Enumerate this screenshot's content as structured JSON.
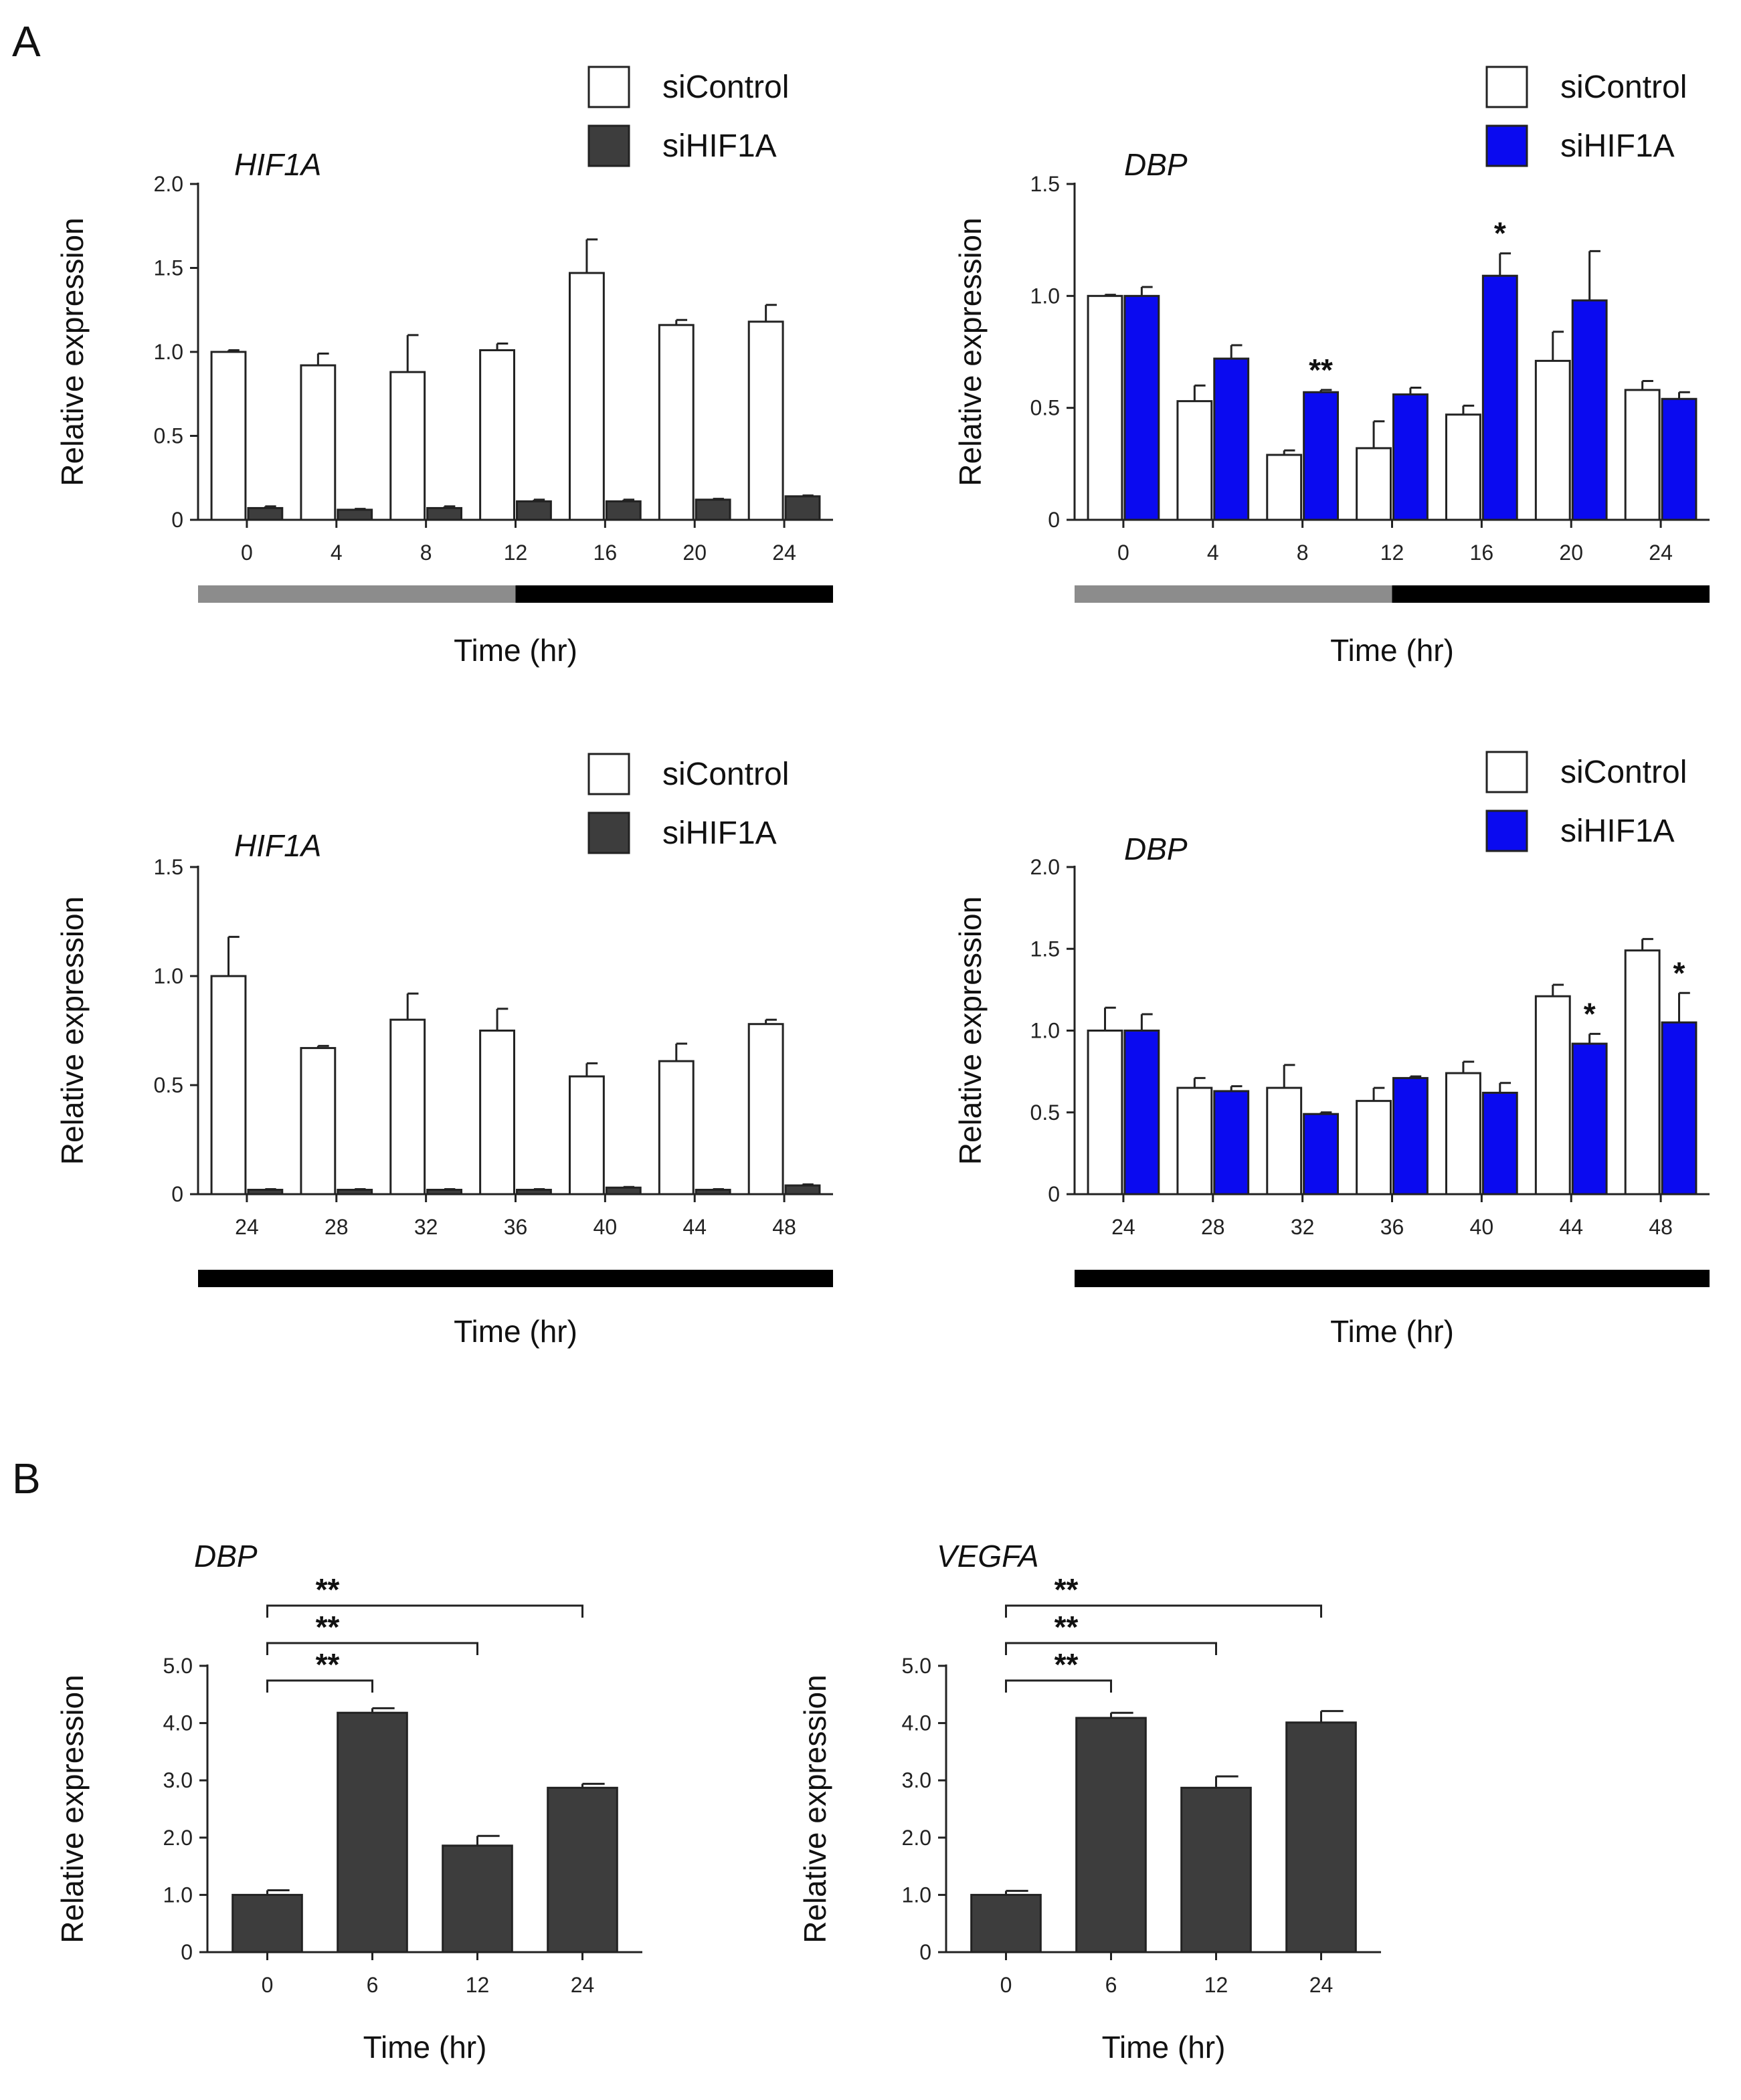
{
  "panels": {
    "A": "A",
    "B": "B"
  },
  "chart_data": [
    {
      "type": "bar",
      "panel": "A",
      "title": "HIF1A",
      "ylabel": "Relative expression",
      "xlabel": "Time (hr)",
      "ylim": [
        0,
        2.0
      ],
      "yticks": [
        "0",
        "0.5",
        "1.0",
        "1.5",
        "2.0"
      ],
      "categories": [
        "0",
        "4",
        "8",
        "12",
        "16",
        "20",
        "24"
      ],
      "light_bar": {
        "segments": [
          {
            "from": 0,
            "to": 12,
            "color": "#8c8c8c"
          },
          {
            "from": 12,
            "to": 24,
            "color": "#000000"
          }
        ]
      },
      "legend_position": "top-right",
      "series": [
        {
          "name": "siControl",
          "color": "#ffffff",
          "values": [
            1.0,
            0.92,
            0.88,
            1.01,
            1.47,
            1.16,
            1.18
          ],
          "errors": [
            0.01,
            0.07,
            0.22,
            0.04,
            0.2,
            0.03,
            0.1
          ]
        },
        {
          "name": "siHIF1A",
          "color": "#3d3d3d",
          "values": [
            0.07,
            0.06,
            0.07,
            0.11,
            0.11,
            0.12,
            0.14
          ],
          "errors": [
            0.01,
            0.005,
            0.01,
            0.01,
            0.01,
            0.005,
            0.005
          ]
        }
      ],
      "annotations": []
    },
    {
      "type": "bar",
      "panel": "A",
      "title": "DBP",
      "ylabel": "Relative expression",
      "xlabel": "Time (hr)",
      "ylim": [
        0,
        1.5
      ],
      "yticks": [
        "0",
        "0.5",
        "1.0",
        "1.5"
      ],
      "categories": [
        "0",
        "4",
        "8",
        "12",
        "16",
        "20",
        "24"
      ],
      "light_bar": {
        "segments": [
          {
            "from": 0,
            "to": 12,
            "color": "#8c8c8c"
          },
          {
            "from": 12,
            "to": 24,
            "color": "#000000"
          }
        ]
      },
      "legend_position": "top-right",
      "series": [
        {
          "name": "siControl",
          "color": "#ffffff",
          "values": [
            1.0,
            0.53,
            0.29,
            0.32,
            0.47,
            0.71,
            0.58
          ],
          "errors": [
            0.005,
            0.07,
            0.02,
            0.12,
            0.04,
            0.13,
            0.04
          ]
        },
        {
          "name": "siHIF1A",
          "color": "#0a0af0",
          "values": [
            1.0,
            0.72,
            0.57,
            0.56,
            1.09,
            0.98,
            0.54
          ],
          "errors": [
            0.04,
            0.06,
            0.01,
            0.03,
            0.1,
            0.22,
            0.03
          ]
        }
      ],
      "annotations": [
        {
          "category": "8",
          "text": "**"
        },
        {
          "category": "16",
          "text": "*"
        }
      ]
    },
    {
      "type": "bar",
      "panel": "A",
      "title": "HIF1A",
      "ylabel": "Relative expression",
      "xlabel": "Time (hr)",
      "ylim": [
        0,
        1.5
      ],
      "yticks": [
        "0",
        "0.5",
        "1.0",
        "1.5"
      ],
      "categories": [
        "24",
        "28",
        "32",
        "36",
        "40",
        "44",
        "48"
      ],
      "light_bar": {
        "segments": [
          {
            "from": 24,
            "to": 48,
            "color": "#000000"
          }
        ]
      },
      "legend_position": "top-right",
      "series": [
        {
          "name": "siControl",
          "color": "#ffffff",
          "values": [
            1.0,
            0.67,
            0.8,
            0.75,
            0.54,
            0.61,
            0.78
          ],
          "errors": [
            0.18,
            0.01,
            0.12,
            0.1,
            0.06,
            0.08,
            0.02
          ]
        },
        {
          "name": "siHIF1A",
          "color": "#3d3d3d",
          "values": [
            0.02,
            0.02,
            0.02,
            0.02,
            0.03,
            0.02,
            0.04
          ],
          "errors": [
            0.003,
            0.003,
            0.003,
            0.003,
            0.003,
            0.003,
            0.005
          ]
        }
      ],
      "annotations": []
    },
    {
      "type": "bar",
      "panel": "A",
      "title": "DBP",
      "ylabel": "Relative expression",
      "xlabel": "Time (hr)",
      "ylim": [
        0,
        2.0
      ],
      "yticks": [
        "0",
        "0.5",
        "1.0",
        "1.5",
        "2.0"
      ],
      "categories": [
        "24",
        "28",
        "32",
        "36",
        "40",
        "44",
        "48"
      ],
      "light_bar": {
        "segments": [
          {
            "from": 24,
            "to": 48,
            "color": "#000000"
          }
        ]
      },
      "legend_position": "top-right",
      "series": [
        {
          "name": "siControl",
          "color": "#ffffff",
          "values": [
            1.0,
            0.65,
            0.65,
            0.57,
            0.74,
            1.21,
            1.49
          ],
          "errors": [
            0.14,
            0.06,
            0.14,
            0.08,
            0.07,
            0.07,
            0.07
          ]
        },
        {
          "name": "siHIF1A",
          "color": "#0a0af0",
          "values": [
            1.0,
            0.63,
            0.49,
            0.71,
            0.62,
            0.92,
            1.05
          ],
          "errors": [
            0.1,
            0.03,
            0.01,
            0.01,
            0.06,
            0.06,
            0.18
          ]
        }
      ],
      "annotations": [
        {
          "category": "44",
          "text": "*"
        },
        {
          "category": "48",
          "text": "*"
        }
      ]
    },
    {
      "type": "bar",
      "panel": "B",
      "title": "DBP",
      "ylabel": "Relative expression",
      "xlabel": "Time (hr)",
      "ylim": [
        0,
        5.0
      ],
      "yticks": [
        "0",
        "1.0",
        "2.0",
        "3.0",
        "4.0",
        "5.0"
      ],
      "categories": [
        "0",
        "6",
        "12",
        "24"
      ],
      "series": [
        {
          "color": "#3d3d3d",
          "values": [
            1.0,
            4.18,
            1.86,
            2.87
          ],
          "errors": [
            0.08,
            0.08,
            0.17,
            0.07
          ]
        }
      ],
      "brackets": [
        {
          "from": "0",
          "to": "6",
          "text": "**"
        },
        {
          "from": "0",
          "to": "12",
          "text": "**"
        },
        {
          "from": "0",
          "to": "24",
          "text": "**"
        }
      ]
    },
    {
      "type": "bar",
      "panel": "B",
      "title": "VEGFA",
      "ylabel": "Relative expression",
      "xlabel": "Time (hr)",
      "ylim": [
        0,
        5.0
      ],
      "yticks": [
        "0",
        "1.0",
        "2.0",
        "3.0",
        "4.0",
        "5.0"
      ],
      "categories": [
        "0",
        "6",
        "12",
        "24"
      ],
      "series": [
        {
          "color": "#3d3d3d",
          "values": [
            1.0,
            4.09,
            2.87,
            4.01
          ],
          "errors": [
            0.07,
            0.09,
            0.2,
            0.2
          ]
        }
      ],
      "brackets": [
        {
          "from": "0",
          "to": "6",
          "text": "**"
        },
        {
          "from": "0",
          "to": "12",
          "text": "**"
        },
        {
          "from": "0",
          "to": "24",
          "text": "**"
        }
      ]
    }
  ]
}
